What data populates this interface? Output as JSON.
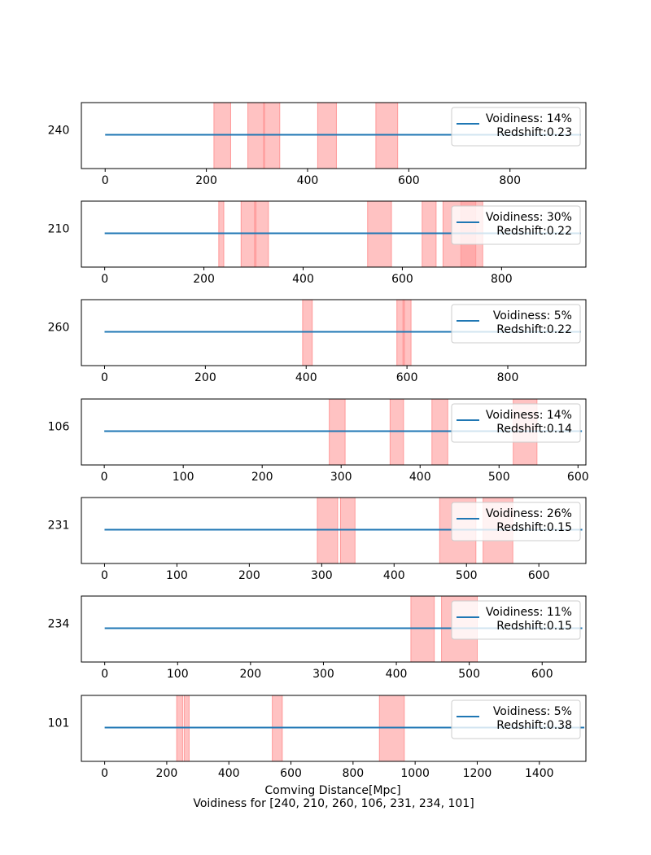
{
  "figure": {
    "xlabel": "Comving Distance[Mpc]",
    "title": "Voidiness for [240, 210, 260, 106, 231, 234, 101]",
    "colors": {
      "line": "#1f77b4",
      "span": "#ff9999"
    }
  },
  "chart_data": [
    {
      "type": "line",
      "ylabel": "240",
      "xlim": [
        -47,
        950
      ],
      "xticks": [
        0,
        200,
        400,
        600,
        800
      ],
      "line_x": [
        0,
        940
      ],
      "spans": [
        [
          215,
          248
        ],
        [
          282,
          315
        ],
        [
          313,
          345
        ],
        [
          420,
          457
        ],
        [
          535,
          578
        ]
      ],
      "legend": {
        "line1": "Voidiness: 14%",
        "line2": " Redshift:0.23"
      }
    },
    {
      "type": "line",
      "ylabel": "210",
      "xlim": [
        -47,
        970
      ],
      "xticks": [
        0,
        200,
        400,
        600,
        800
      ],
      "line_x": [
        0,
        960
      ],
      "spans": [
        [
          230,
          240
        ],
        [
          275,
          305
        ],
        [
          302,
          330
        ],
        [
          530,
          578
        ],
        [
          640,
          668
        ],
        [
          682,
          762
        ],
        [
          718,
          748
        ]
      ],
      "legend": {
        "line1": "Voidiness: 30%",
        "line2": " Redshift:0.22"
      }
    },
    {
      "type": "line",
      "ylabel": "260",
      "xlim": [
        -46,
        955
      ],
      "xticks": [
        0,
        200,
        400,
        600,
        800
      ],
      "line_x": [
        0,
        945
      ],
      "spans": [
        [
          393,
          412
        ],
        [
          580,
          595
        ],
        [
          592,
          608
        ]
      ],
      "legend": {
        "line1": "Voidiness: 5%",
        "line2": " Redshift:0.22"
      }
    },
    {
      "type": "line",
      "ylabel": "106",
      "xlim": [
        -29,
        610
      ],
      "xticks": [
        0,
        100,
        200,
        300,
        400,
        500,
        600
      ],
      "line_x": [
        0,
        605
      ],
      "spans": [
        [
          285,
          305
        ],
        [
          362,
          379
        ],
        [
          415,
          435
        ],
        [
          518,
          548
        ]
      ],
      "legend": {
        "line1": "Voidiness: 14%",
        "line2": " Redshift:0.14"
      }
    },
    {
      "type": "line",
      "ylabel": "231",
      "xlim": [
        -32,
        665
      ],
      "xticks": [
        0,
        100,
        200,
        300,
        400,
        500,
        600
      ],
      "line_x": [
        0,
        660
      ],
      "spans": [
        [
          294,
          322
        ],
        [
          326,
          346
        ],
        [
          463,
          513
        ],
        [
          523,
          564
        ]
      ],
      "legend": {
        "line1": "Voidiness: 26%",
        "line2": " Redshift:0.15"
      }
    },
    {
      "type": "line",
      "ylabel": "234",
      "xlim": [
        -32,
        660
      ],
      "xticks": [
        0,
        100,
        200,
        300,
        400,
        500,
        600
      ],
      "line_x": [
        0,
        655
      ],
      "spans": [
        [
          420,
          452
        ],
        [
          462,
          511
        ]
      ],
      "legend": {
        "line1": "Voidiness: 11%",
        "line2": " Redshift:0.15"
      }
    },
    {
      "type": "line",
      "ylabel": "101",
      "xlim": [
        -75,
        1550
      ],
      "xticks": [
        0,
        200,
        400,
        600,
        800,
        1000,
        1200,
        1400
      ],
      "line_x": [
        0,
        1545
      ],
      "spans": [
        [
          232,
          251
        ],
        [
          256,
          272
        ],
        [
          540,
          572
        ],
        [
          885,
          965
        ]
      ],
      "legend": {
        "line1": "Voidiness: 5%",
        "line2": " Redshift:0.38"
      }
    }
  ]
}
